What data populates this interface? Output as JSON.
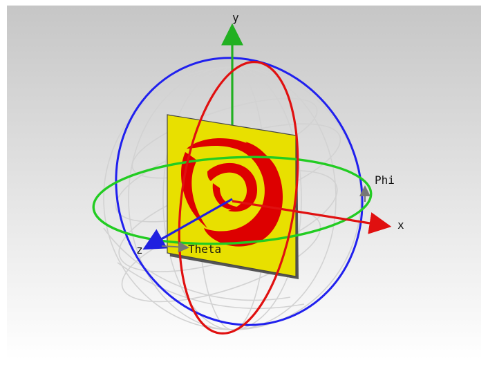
{
  "viewport": {
    "background_top": "#c6c6c6",
    "background_bottom": "#ffffff"
  },
  "axes": {
    "x_label": "x",
    "y_label": "y",
    "z_label": "z",
    "theta_label": "Theta",
    "phi_label": "Phi",
    "colors": {
      "x": "#e01010",
      "y": "#22b022",
      "z": "#2020e0",
      "guide": "#777777"
    }
  },
  "rings": {
    "xz_color": "#22cc22",
    "yz_color": "#e01010",
    "xy_color": "#2020ee",
    "grid_color": "#d2d2d2"
  },
  "antenna": {
    "substrate_color": "#e8e000",
    "pattern_color": "#dd0000",
    "edge_color": "#333333",
    "shape": "spiral"
  }
}
